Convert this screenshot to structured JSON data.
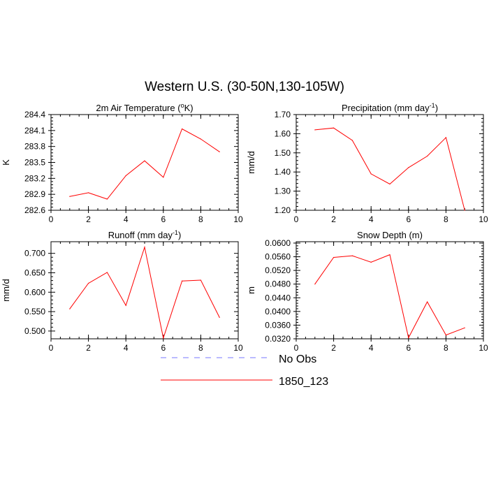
{
  "figure": {
    "title": "Western U.S. (30-50N,130-105W)"
  },
  "legend": {
    "placement": "bottom-center",
    "entries": [
      {
        "label": "No Obs",
        "color": "#7777ff",
        "dash": true
      },
      {
        "label": "1850_123",
        "color": "#ff0000",
        "dash": false
      }
    ]
  },
  "chart_data": [
    {
      "type": "line",
      "title": "2m Air Temperature (°K)",
      "title_parts": [
        "2m Air Temperature (",
        "o",
        "K)"
      ],
      "ylabel": "K",
      "xlim": [
        0,
        10
      ],
      "ylim": [
        282.6,
        284.4
      ],
      "xticks": [
        0,
        2,
        4,
        6,
        8,
        10
      ],
      "yticks": [
        282.6,
        282.9,
        283.2,
        283.5,
        283.8,
        284.1,
        284.4
      ],
      "ytick_labels": [
        "282.6",
        "282.9",
        "283.2",
        "283.5",
        "283.8",
        "284.1",
        "284.4"
      ],
      "series": [
        {
          "name": "1850_123",
          "color": "#ff0000",
          "x": [
            1,
            2,
            3,
            4,
            5,
            6,
            7,
            8,
            9
          ],
          "y": [
            282.86,
            282.93,
            282.81,
            283.25,
            283.53,
            283.22,
            284.13,
            283.94,
            283.7
          ]
        }
      ]
    },
    {
      "type": "line",
      "title": "Precipitation (mm day-1)",
      "title_parts": [
        "Precipitation (mm day",
        "-1",
        ")"
      ],
      "ylabel": "mm/d",
      "xlim": [
        0,
        10
      ],
      "ylim": [
        1.2,
        1.7
      ],
      "xticks": [
        0,
        2,
        4,
        6,
        8,
        10
      ],
      "yticks": [
        1.2,
        1.3,
        1.4,
        1.5,
        1.6,
        1.7
      ],
      "ytick_labels": [
        "1.20",
        "1.30",
        "1.40",
        "1.50",
        "1.60",
        "1.70"
      ],
      "series": [
        {
          "name": "1850_123",
          "color": "#ff0000",
          "x": [
            1,
            2,
            3,
            4,
            5,
            6,
            7,
            8,
            9
          ],
          "y": [
            1.62,
            1.63,
            1.565,
            1.39,
            1.337,
            1.423,
            1.483,
            1.58,
            1.2
          ]
        }
      ]
    },
    {
      "type": "line",
      "title": "Runoff (mm day-1)",
      "title_parts": [
        "Runoff (mm day",
        "-1",
        ")"
      ],
      "ylabel": "mm/d",
      "xlim": [
        0,
        10
      ],
      "ylim": [
        0.48,
        0.73
      ],
      "xticks": [
        0,
        2,
        4,
        6,
        8,
        10
      ],
      "yticks": [
        0.5,
        0.55,
        0.6,
        0.65,
        0.7
      ],
      "ytick_labels": [
        "0.500",
        "0.550",
        "0.600",
        "0.650",
        "0.700"
      ],
      "series": [
        {
          "name": "1850_123",
          "color": "#ff0000",
          "x": [
            1,
            2,
            3,
            4,
            5,
            6,
            7,
            8,
            9
          ],
          "y": [
            0.557,
            0.623,
            0.651,
            0.566,
            0.716,
            0.482,
            0.629,
            0.631,
            0.535
          ]
        }
      ]
    },
    {
      "type": "line",
      "title": "Snow Depth (m)",
      "title_parts": [
        "Snow Depth (m)",
        "",
        ""
      ],
      "ylabel": "m",
      "xlim": [
        0,
        10
      ],
      "ylim": [
        0.032,
        0.0604
      ],
      "xticks": [
        0,
        2,
        4,
        6,
        8,
        10
      ],
      "yticks": [
        0.032,
        0.036,
        0.04,
        0.044,
        0.048,
        0.052,
        0.056,
        0.06
      ],
      "ytick_labels": [
        "0.0320",
        "0.0360",
        "0.0400",
        "0.0440",
        "0.0480",
        "0.0520",
        "0.0560",
        "0.0600"
      ],
      "series": [
        {
          "name": "1850_123",
          "color": "#ff0000",
          "x": [
            1,
            2,
            3,
            4,
            5,
            6,
            7,
            8,
            9
          ],
          "y": [
            0.048,
            0.0558,
            0.0563,
            0.0544,
            0.0566,
            0.0323,
            0.0428,
            0.0331,
            0.0352
          ]
        }
      ]
    }
  ]
}
